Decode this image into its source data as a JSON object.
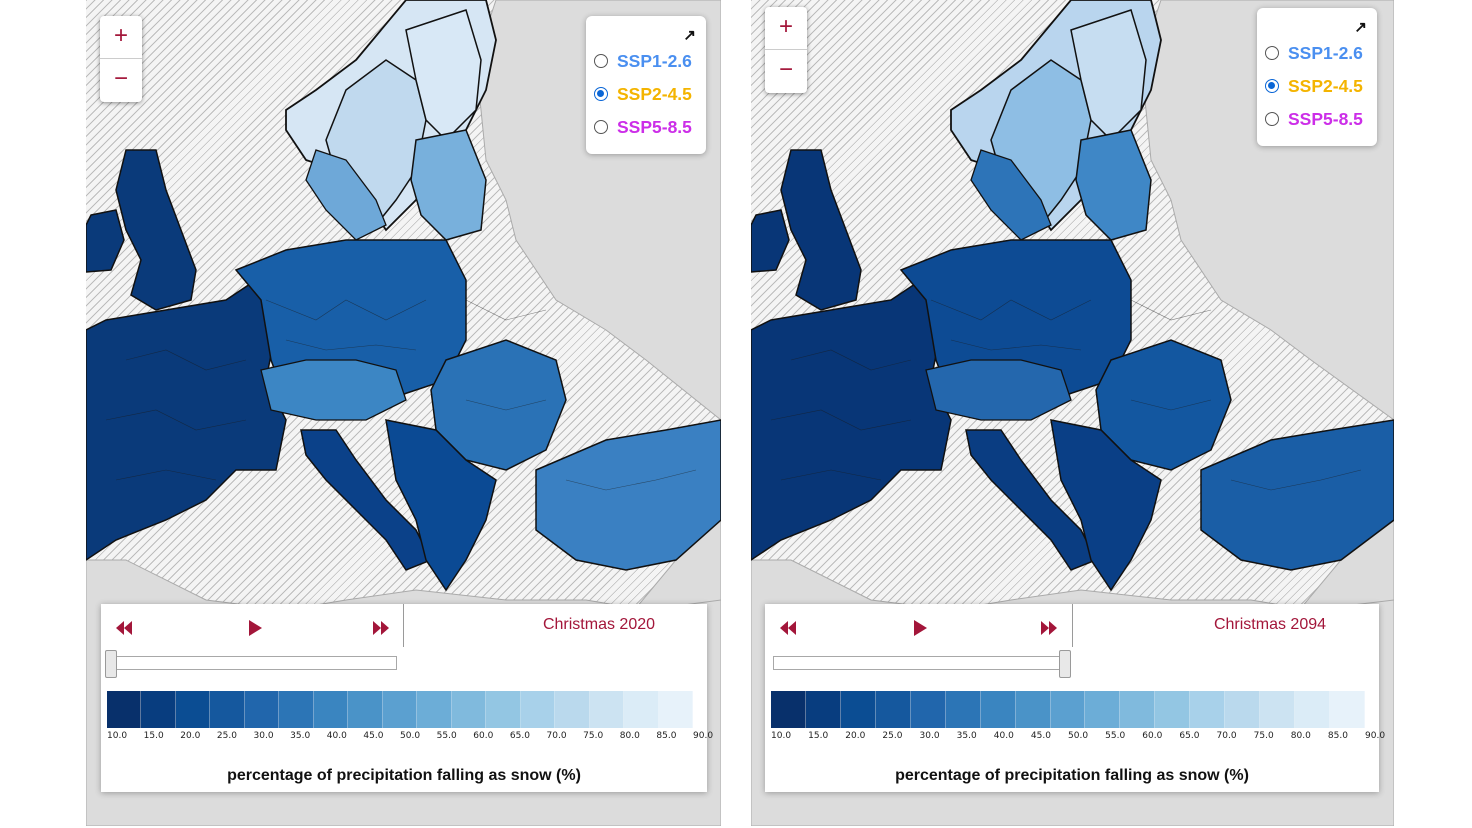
{
  "zoom": {
    "in_label": "+",
    "out_label": "−"
  },
  "scenarios": [
    {
      "label": "SSP1-2.6",
      "color": "#4a8ff0"
    },
    {
      "label": "SSP2-4.5",
      "color": "#f4b400"
    },
    {
      "label": "SSP5-8.5",
      "color": "#cc2ee8"
    }
  ],
  "panels": [
    {
      "selected_scenario": "SSP2-4.5",
      "title": "Christmas 2020",
      "slider_fraction": 0.0
    },
    {
      "selected_scenario": "SSP2-4.5",
      "title": "Christmas 2094",
      "slider_fraction": 1.0
    }
  ],
  "legend": {
    "caption": "percentage of precipitation falling as snow (%)",
    "ticks": [
      "10.0",
      "15.0",
      "20.0",
      "25.0",
      "30.0",
      "35.0",
      "40.0",
      "45.0",
      "50.0",
      "55.0",
      "60.0",
      "65.0",
      "70.0",
      "75.0",
      "80.0",
      "85.0",
      "90.0"
    ],
    "colors": [
      "#08306b",
      "#083d7f",
      "#0b4d93",
      "#15589e",
      "#2166ac",
      "#2c75b6",
      "#3a85c0",
      "#4a93c8",
      "#5ba0d0",
      "#6cadd7",
      "#80badd",
      "#93c6e3",
      "#a8d1ea",
      "#bad9ed",
      "#cce3f2",
      "#dbecf7",
      "#e7f2fa"
    ]
  },
  "icons": {
    "rewind": "rewind-icon",
    "play": "play-icon",
    "forward": "fast-forward-icon",
    "expand": "arrow-up-right-icon"
  }
}
